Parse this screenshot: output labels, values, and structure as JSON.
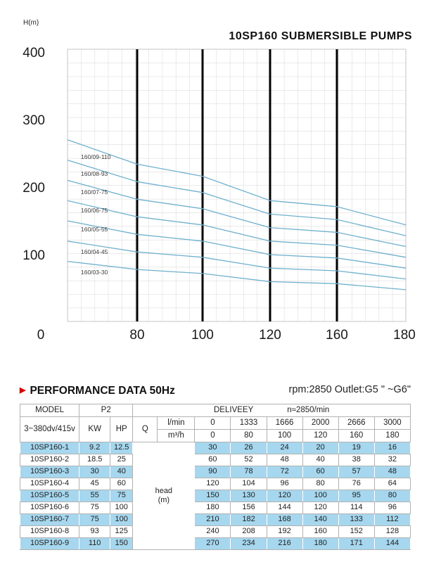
{
  "chart": {
    "y_axis_unit": "H(m)",
    "title": "10SP160 SUBMERSIBLE PUMPS"
  },
  "chart_data": {
    "type": "line",
    "title": "10SP160 SUBMERSIBLE PUMPS",
    "ylabel": "H(m)",
    "xlabel": "",
    "x": [
      0,
      80,
      100,
      120,
      160,
      180
    ],
    "x_tick_labels": [
      "0",
      "80",
      "100",
      "120",
      "160",
      "180"
    ],
    "y_ticks": [
      400,
      300,
      200,
      100
    ],
    "ylim": [
      0,
      420
    ],
    "grid": true,
    "bold_x_lines": [
      80,
      100,
      120,
      160
    ],
    "curve_color": "#6fb0cd",
    "series": [
      {
        "name": "160/09-110",
        "values": [
          270,
          234,
          216,
          180,
          171,
          144
        ]
      },
      {
        "name": "160/08-93",
        "values": [
          240,
          208,
          192,
          160,
          152,
          128
        ]
      },
      {
        "name": "160/07-75",
        "values": [
          210,
          182,
          168,
          140,
          133,
          112
        ]
      },
      {
        "name": "160/06-75",
        "values": [
          180,
          156,
          144,
          120,
          114,
          96
        ]
      },
      {
        "name": "160/05-55",
        "values": [
          150,
          130,
          120,
          100,
          95,
          80
        ]
      },
      {
        "name": "160/04-45",
        "values": [
          120,
          104,
          96,
          80,
          76,
          64
        ]
      },
      {
        "name": "160/03-30",
        "values": [
          90,
          78,
          72,
          60,
          57,
          48
        ]
      }
    ]
  },
  "performance": {
    "section_title": "PERFORMANCE DATA 50Hz",
    "rpm_outlet": "rpm:2850  Outlet:G5 \" ~G6\"",
    "table": {
      "model_header": "MODEL",
      "p2_header": "P2",
      "delivery_header": "DELIVEEY",
      "speed_note": "n≈2850/min",
      "voltage": "3~380dv/415v",
      "kw_header": "KW",
      "hp_header": "HP",
      "q_header": "Q",
      "unit_lmin": "l/min",
      "unit_m3h": "m³/h",
      "flow_lmin": [
        0,
        1333,
        1666,
        2000,
        2666,
        3000
      ],
      "flow_m3h": [
        0,
        80,
        100,
        120,
        160,
        180
      ],
      "head_label": "head",
      "head_unit": "(m)",
      "rows": [
        {
          "model": "10SP160-1",
          "kw": "9.2",
          "hp": "12.5",
          "heads": [
            30,
            26,
            24,
            20,
            19,
            16
          ]
        },
        {
          "model": "10SP160-2",
          "kw": "18.5",
          "hp": "25",
          "heads": [
            60,
            52,
            48,
            40,
            38,
            32
          ]
        },
        {
          "model": "10SP160-3",
          "kw": "30",
          "hp": "40",
          "heads": [
            90,
            78,
            72,
            60,
            57,
            48
          ]
        },
        {
          "model": "10SP160-4",
          "kw": "45",
          "hp": "60",
          "heads": [
            120,
            104,
            96,
            80,
            76,
            64
          ]
        },
        {
          "model": "10SP160-5",
          "kw": "55",
          "hp": "75",
          "heads": [
            150,
            130,
            120,
            100,
            95,
            80
          ]
        },
        {
          "model": "10SP160-6",
          "kw": "75",
          "hp": "100",
          "heads": [
            180,
            156,
            144,
            120,
            114,
            96
          ]
        },
        {
          "model": "10SP160-7",
          "kw": "75",
          "hp": "100",
          "heads": [
            210,
            182,
            168,
            140,
            133,
            112
          ]
        },
        {
          "model": "10SP160-8",
          "kw": "93",
          "hp": "125",
          "heads": [
            240,
            208,
            192,
            160,
            152,
            128
          ]
        },
        {
          "model": "10SP160-9",
          "kw": "110",
          "hp": "150",
          "heads": [
            270,
            234,
            216,
            180,
            171,
            144
          ]
        }
      ]
    }
  }
}
